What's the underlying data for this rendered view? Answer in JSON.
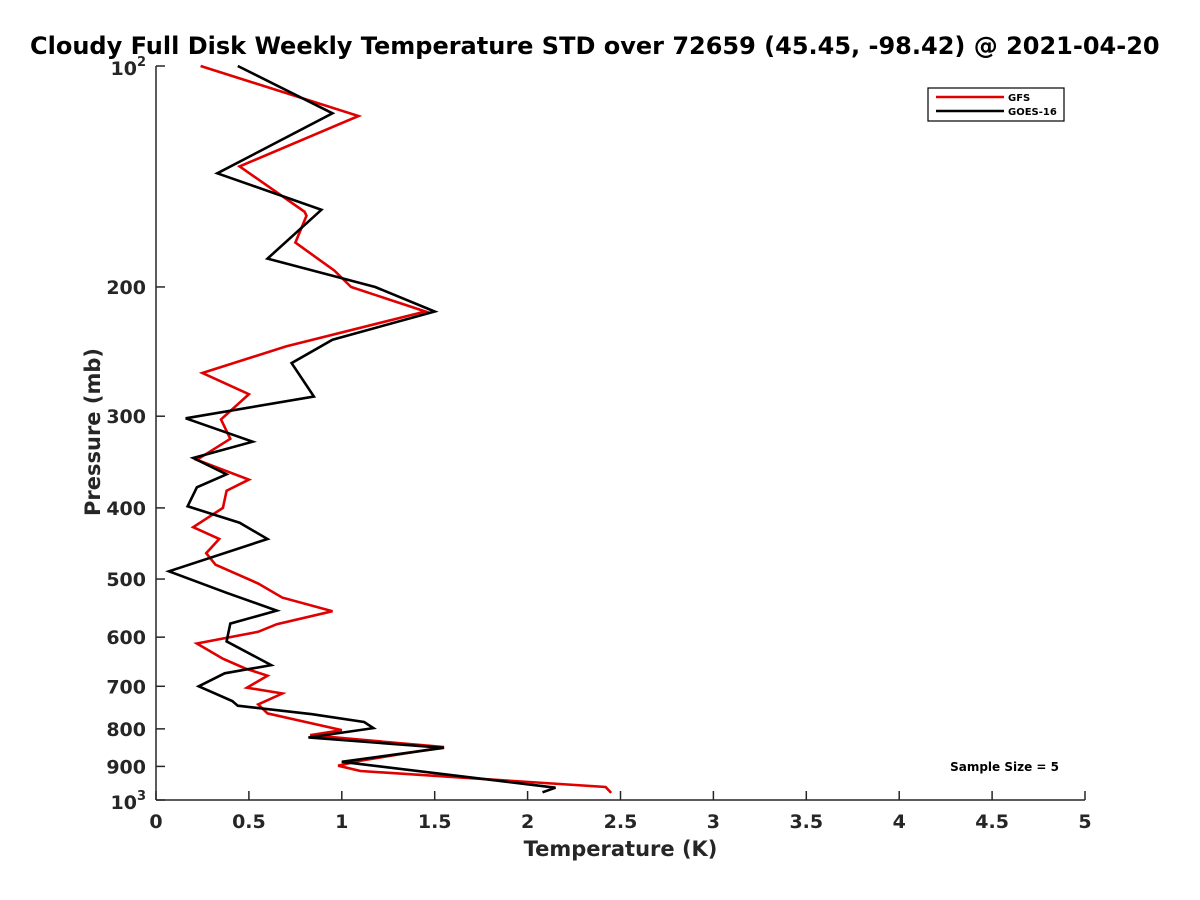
{
  "chart_data": {
    "type": "line",
    "title": "Cloudy Full Disk Weekly Temperature STD over 72659 (45.45, -98.42) @ 2021-04-20",
    "xlabel": "Temperature (K)",
    "ylabel": "Pressure (mb)",
    "xlim": [
      0,
      5
    ],
    "ylim": [
      100,
      1000
    ],
    "y_scale": "log",
    "y_reversed": true,
    "x_ticks": [
      "0",
      "0.5",
      "1",
      "1.5",
      "2",
      "2.5",
      "3",
      "3.5",
      "4",
      "4.5",
      "5"
    ],
    "y_ticks": [
      {
        "value": 100,
        "base": "10",
        "exp": "2"
      },
      {
        "value": 200,
        "label": "200"
      },
      {
        "value": 300,
        "label": "300"
      },
      {
        "value": 400,
        "label": "400"
      },
      {
        "value": 500,
        "label": "500"
      },
      {
        "value": 600,
        "label": "600"
      },
      {
        "value": 700,
        "label": "700"
      },
      {
        "value": 800,
        "label": "800"
      },
      {
        "value": 900,
        "label": "900"
      },
      {
        "value": 1000,
        "base": "10",
        "exp": "3"
      }
    ],
    "legend_position": "top-right",
    "grid": false,
    "series": [
      {
        "name": "GFS",
        "color": "#e00000",
        "points": [
          [
            0.24,
            100
          ],
          [
            1.09,
            117
          ],
          [
            0.45,
            137
          ],
          [
            0.8,
            158
          ],
          [
            0.81,
            160
          ],
          [
            0.75,
            174
          ],
          [
            0.96,
            190
          ],
          [
            1.05,
            200
          ],
          [
            1.45,
            216
          ],
          [
            0.7,
            241
          ],
          [
            0.25,
            262
          ],
          [
            0.5,
            280
          ],
          [
            0.35,
            303
          ],
          [
            0.4,
            322
          ],
          [
            0.22,
            344
          ],
          [
            0.5,
            366
          ],
          [
            0.38,
            379
          ],
          [
            0.36,
            400
          ],
          [
            0.2,
            425
          ],
          [
            0.34,
            441
          ],
          [
            0.27,
            461
          ],
          [
            0.32,
            478
          ],
          [
            0.55,
            507
          ],
          [
            0.68,
            530
          ],
          [
            0.95,
            553
          ],
          [
            0.65,
            576
          ],
          [
            0.55,
            590
          ],
          [
            0.22,
            612
          ],
          [
            0.36,
            642
          ],
          [
            0.48,
            662
          ],
          [
            0.6,
            677
          ],
          [
            0.49,
            703
          ],
          [
            0.68,
            716
          ],
          [
            0.55,
            741
          ],
          [
            0.6,
            762
          ],
          [
            1.0,
            803
          ],
          [
            0.83,
            816
          ],
          [
            1.55,
            847
          ],
          [
            1.1,
            884
          ],
          [
            0.98,
            898
          ],
          [
            1.1,
            913
          ],
          [
            2.42,
            960
          ],
          [
            2.45,
            978
          ]
        ]
      },
      {
        "name": "GOES-16",
        "color": "#000000",
        "points": [
          [
            0.44,
            100
          ],
          [
            0.95,
            116
          ],
          [
            0.33,
            140
          ],
          [
            0.89,
            157
          ],
          [
            0.6,
            183
          ],
          [
            1.18,
            200
          ],
          [
            1.5,
            216
          ],
          [
            0.95,
            236
          ],
          [
            0.73,
            254
          ],
          [
            0.85,
            282
          ],
          [
            0.16,
            302
          ],
          [
            0.52,
            325
          ],
          [
            0.2,
            342
          ],
          [
            0.38,
            360
          ],
          [
            0.22,
            375
          ],
          [
            0.17,
            398
          ],
          [
            0.45,
            419
          ],
          [
            0.6,
            441
          ],
          [
            0.07,
            488
          ],
          [
            0.38,
            522
          ],
          [
            0.65,
            552
          ],
          [
            0.4,
            575
          ],
          [
            0.38,
            608
          ],
          [
            0.62,
            655
          ],
          [
            0.37,
            672
          ],
          [
            0.23,
            700
          ],
          [
            0.41,
            733
          ],
          [
            0.44,
            744
          ],
          [
            0.84,
            764
          ],
          [
            1.12,
            783
          ],
          [
            1.17,
            798
          ],
          [
            0.82,
            822
          ],
          [
            1.55,
            849
          ],
          [
            1.0,
            887
          ],
          [
            2.15,
            962
          ],
          [
            2.08,
            976
          ]
        ]
      }
    ],
    "annotations": [
      "Sample Size = 5"
    ]
  }
}
